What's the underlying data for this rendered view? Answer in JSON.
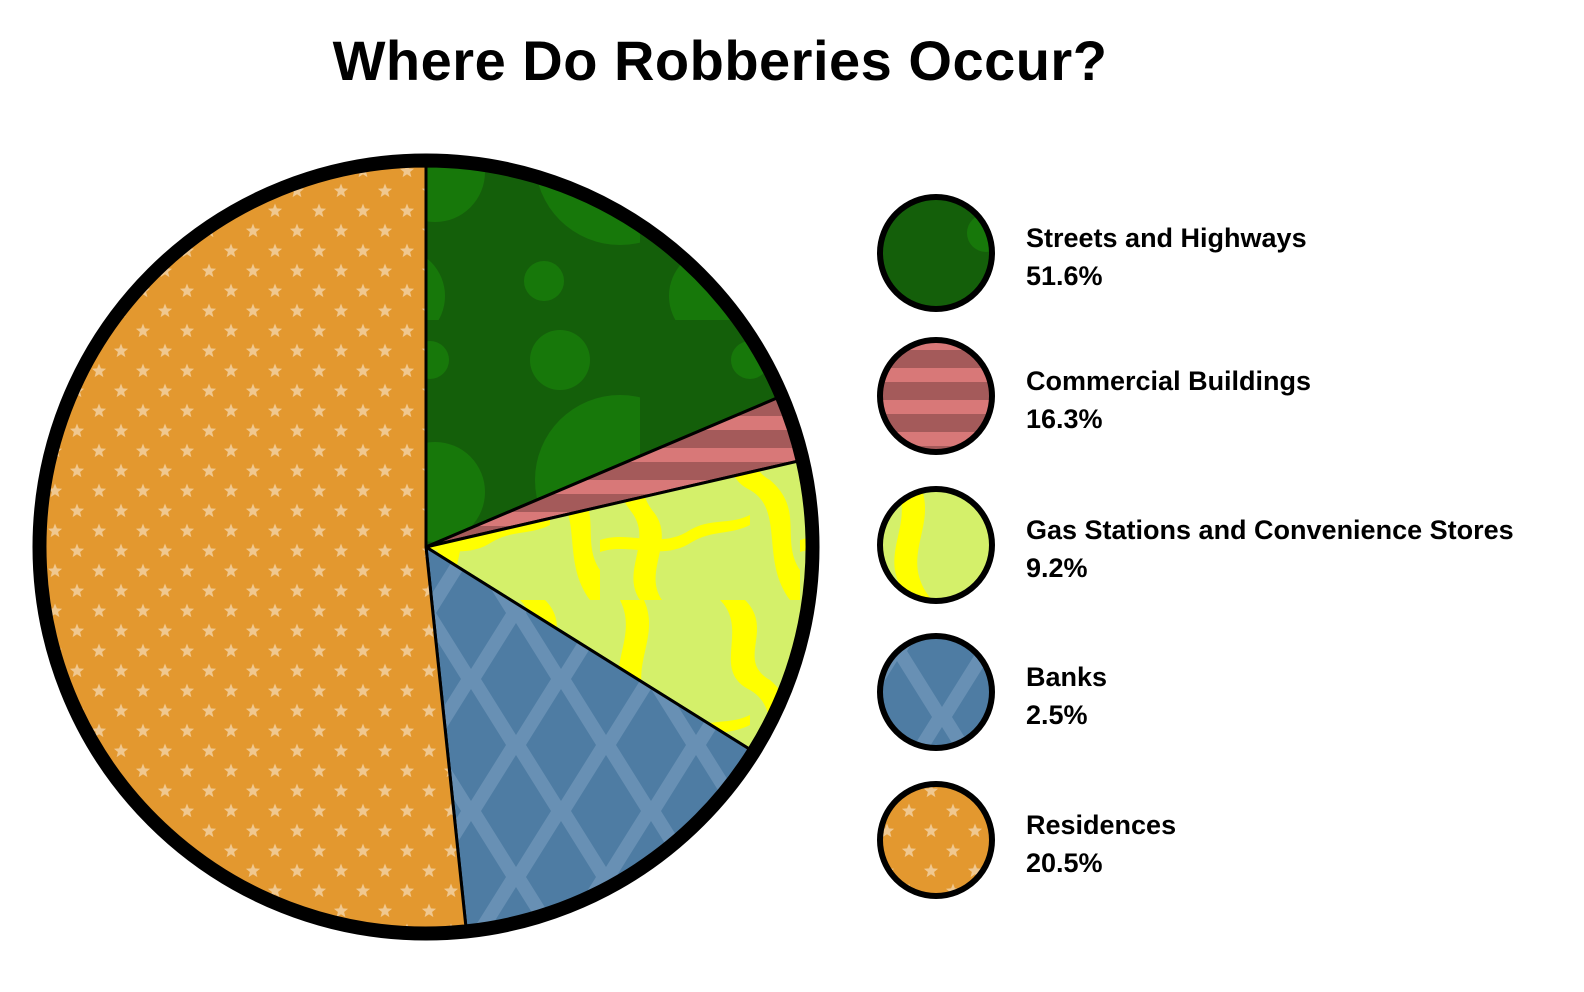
{
  "chart_data": {
    "type": "pie",
    "title": "Where Do Robberies Occur?",
    "categories": [
      "Streets and Highways",
      "Commercial Buildings",
      "Gas Stations and Convenience Stores",
      "Banks",
      "Residences"
    ],
    "values": [
      51.6,
      16.3,
      9.2,
      2.5,
      20.5
    ],
    "value_labels": [
      "51.6%",
      "16.3%",
      "9.2%",
      "2.5%",
      "20.5%"
    ],
    "colors": [
      "#145f0a",
      "#d87878",
      "#d4f06a",
      "#5484a9",
      "#e3982f"
    ],
    "legend_position": "right",
    "series": [
      {
        "name": "Streets and Highways",
        "value": 51.6,
        "label": "51.6%",
        "color": "#145f0a",
        "pattern": "circles"
      },
      {
        "name": "Commercial Buildings",
        "value": 16.3,
        "label": "16.3%",
        "color": "#d87878",
        "pattern": "stripes"
      },
      {
        "name": "Gas Stations and Convenience Stores",
        "value": 9.2,
        "label": "9.2%",
        "color": "#d4f06a",
        "pattern": "marble"
      },
      {
        "name": "Banks",
        "value": 2.5,
        "label": "2.5%",
        "color": "#5484a9",
        "pattern": "diamonds"
      },
      {
        "name": "Residences",
        "value": 20.5,
        "label": "20.5%",
        "color": "#e3982f",
        "pattern": "stars"
      }
    ]
  }
}
